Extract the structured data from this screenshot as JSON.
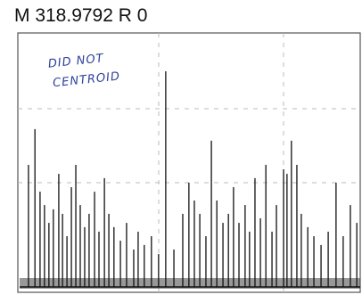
{
  "chart_data": {
    "type": "spectrum",
    "title": "M 318.9792 R 0",
    "annotation": [
      "DID NOT",
      "CENTROID"
    ],
    "color": "#111111",
    "annotation_color": "#2a3f9a",
    "xlim": [
      0,
      100
    ],
    "ylim": [
      0,
      100
    ],
    "x": [
      2.6,
      4.5,
      6.0,
      7.3,
      8.6,
      9.9,
      11.5,
      12.6,
      13.9,
      15.2,
      16.5,
      17.8,
      19.1,
      20.4,
      22.0,
      23.3,
      24.9,
      26.2,
      27.7,
      29.6,
      31.4,
      33.5,
      34.8,
      36.6,
      38.7,
      40.8,
      42.9,
      45.3,
      47.9,
      49.7,
      51.3,
      52.9,
      54.7,
      56.3,
      57.9,
      59.7,
      61.3,
      62.8,
      64.4,
      66.2,
      67.5,
      69.1,
      70.7,
      72.3,
      74.1,
      75.4,
      77.5,
      78.5,
      79.8,
      81.4,
      82.7,
      84.6,
      86.4,
      88.5,
      90.6,
      92.9,
      95.0,
      97.1,
      99.0
    ],
    "values": [
      48.6,
      62.8,
      37.9,
      32.6,
      25.5,
      30.9,
      45.0,
      29.1,
      20.2,
      39.7,
      48.6,
      32.6,
      23.8,
      29.1,
      37.9,
      22.0,
      43.3,
      29.1,
      23.8,
      18.4,
      25.5,
      14.9,
      22.0,
      16.7,
      20.2,
      13.1,
      85.8,
      14.9,
      29.1,
      41.5,
      34.4,
      29.1,
      20.2,
      58.2,
      34.4,
      25.5,
      29.1,
      39.7,
      25.5,
      32.6,
      22.0,
      43.3,
      27.3,
      48.6,
      22.0,
      32.6,
      46.8,
      45.0,
      58.2,
      48.6,
      29.1,
      23.8,
      20.2,
      16.7,
      22.0,
      41.5,
      20.2,
      32.6,
      25.5
    ]
  }
}
